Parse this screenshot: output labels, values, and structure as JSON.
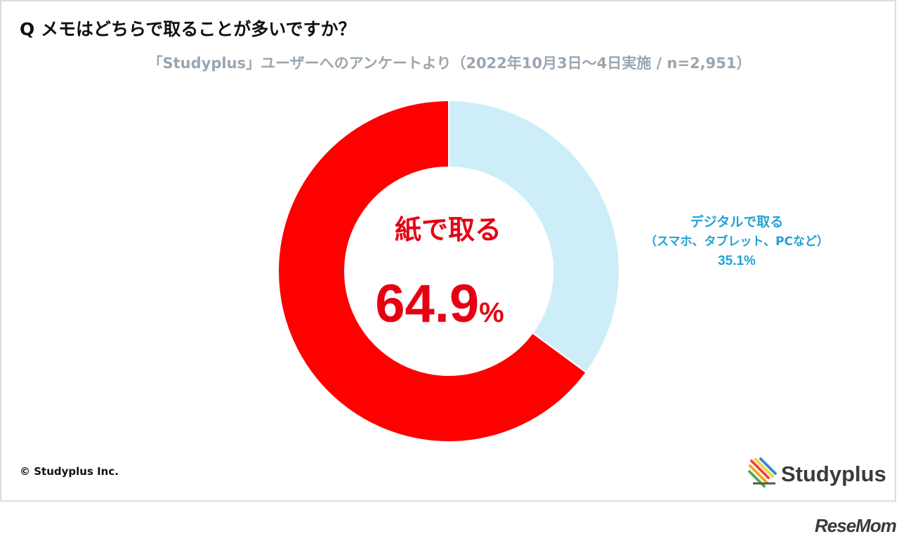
{
  "header": {
    "title": "Q メモはどちらで取ることが多いですか？",
    "subtitle": "「Studyplus」ユーザーへのアンケートより（2022年10月3日〜4日実施 / n=2,951）"
  },
  "chart_data": {
    "type": "pie",
    "donut": true,
    "start_angle_deg": 0,
    "direction": "counterclockwise",
    "slices": [
      {
        "label": "紙で取る",
        "value": 64.9,
        "value_text": "64.9",
        "unit": "%",
        "color": "#ff0000"
      },
      {
        "label_line1": "デジタルで取る",
        "label_line2": "（スマホ、タブレット、PCなど）",
        "value": 35.1,
        "value_text": "35.1%",
        "color": "#cdeef9",
        "label_color": "#1fa3d3"
      }
    ]
  },
  "footer": {
    "copyright": "© Studyplus Inc.",
    "brand": "Studyplus",
    "watermark": "ReseMom"
  },
  "colors": {
    "paper_text": "#e60012",
    "digital_text": "#1fa3d3",
    "subtitle": "#9aa6b0"
  }
}
